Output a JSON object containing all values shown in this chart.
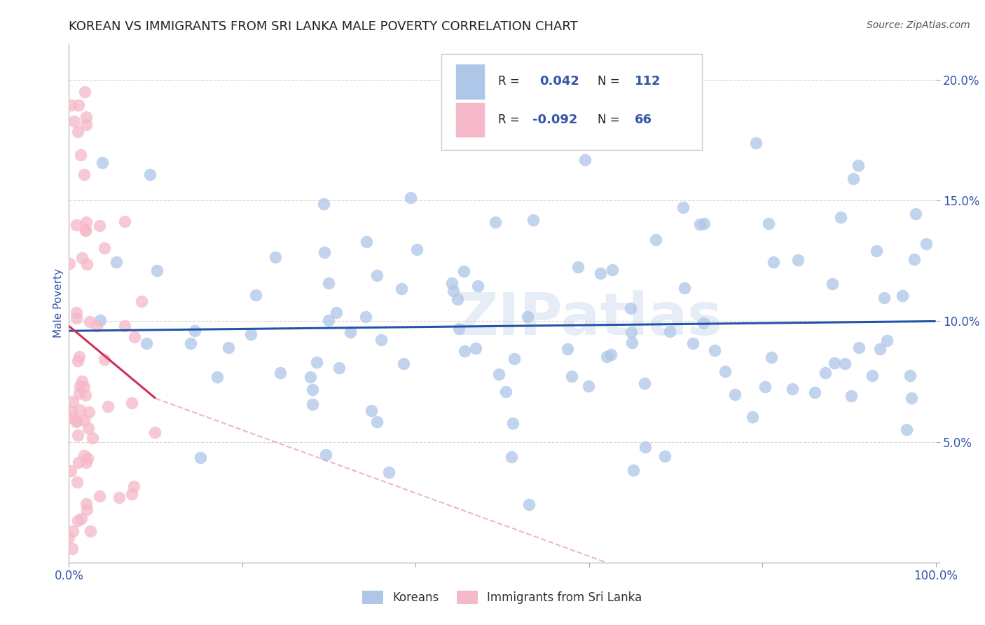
{
  "title": "KOREAN VS IMMIGRANTS FROM SRI LANKA MALE POVERTY CORRELATION CHART",
  "source": "Source: ZipAtlas.com",
  "ylabel_label": "Male Poverty",
  "watermark": "ZIPatlas",
  "xlim": [
    0.0,
    1.0
  ],
  "ylim": [
    0.0,
    0.215
  ],
  "legend_R_korean": "0.042",
  "legend_N_korean": "112",
  "legend_R_srilanka": "-0.092",
  "legend_N_srilanka": "66",
  "korean_color": "#aec6e8",
  "korean_edge_color": "#aec6e8",
  "srilanka_color": "#f5b8c8",
  "srilanka_edge_color": "#f5b8c8",
  "korean_line_color": "#2255aa",
  "srilanka_line_color": "#cc3355",
  "srilanka_dash_color": "#e899b0",
  "grid_color": "#cccccc",
  "axis_label_color": "#3355aa",
  "tick_color": "#3355aa",
  "legend_text_color": "#222222",
  "legend_value_color": "#3355aa"
}
